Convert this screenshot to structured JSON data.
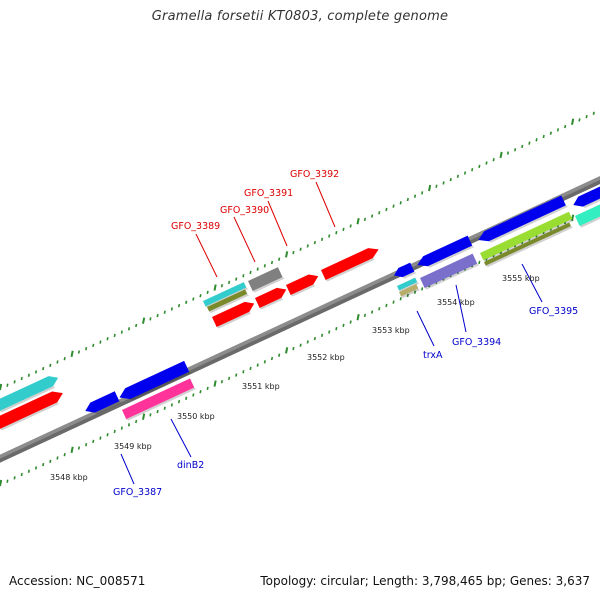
{
  "title": "Gramella forsetii KT0803, complete genome",
  "footer": {
    "accession": "Accession: NC_008571",
    "summary": "Topology: circular; Length: 3,798,465 bp; Genes: 3,637"
  },
  "colors": {
    "backbone": "#8c8c8c",
    "ticks": "#2e8b2e",
    "forward_label": "#dd0000",
    "reverse_label": "#0000cc",
    "red": "#ff0000",
    "blue": "#0000ee",
    "cyan": "#33cccc",
    "gray": "#808080",
    "olive": "#7a8a2a",
    "magenta": "#ff3399",
    "lime": "#99dd33",
    "slate": "#7a70cc",
    "tan": "#b8ad6a",
    "mint": "#33eec0"
  },
  "scale_labels": [
    "3548 kbp",
    "3549 kbp",
    "3550 kbp",
    "3551 kbp",
    "3552 kbp",
    "3553 kbp",
    "3554 kbp",
    "3555 kbp"
  ],
  "forward_gene_labels": [
    "GFO_3389",
    "GFO_3390",
    "GFO_3391",
    "GFO_3392"
  ],
  "reverse_gene_labels": [
    "GFO_3387",
    "dinB2",
    "trxA",
    "GFO_3394",
    "GFO_3395"
  ]
}
